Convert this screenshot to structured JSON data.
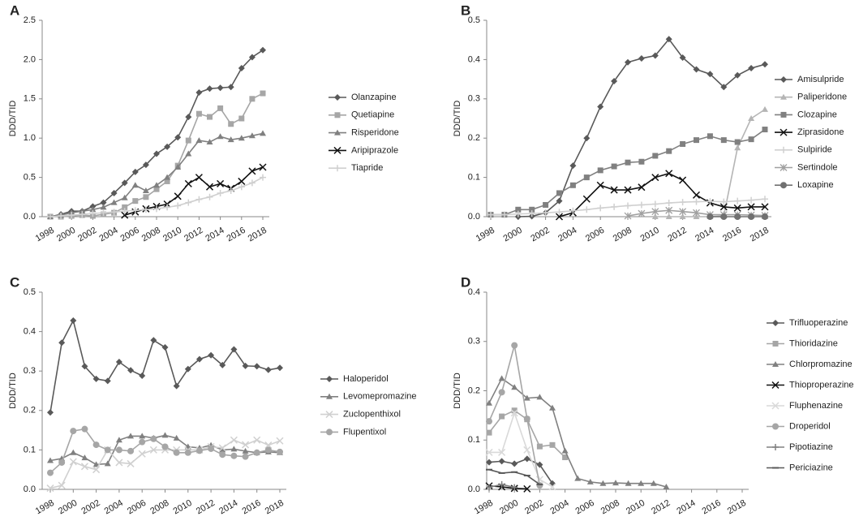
{
  "chart_data": [
    {
      "type": "line",
      "panel": "A",
      "ylabel": "DDD/TID",
      "x": [
        1998,
        1999,
        2000,
        2001,
        2002,
        2003,
        2004,
        2005,
        2006,
        2007,
        2008,
        2009,
        2010,
        2011,
        2012,
        2013,
        2014,
        2015,
        2016,
        2017,
        2018
      ],
      "xlim": [
        1998,
        2018
      ],
      "xticks": [
        1998,
        2000,
        2002,
        2004,
        2006,
        2008,
        2010,
        2012,
        2014,
        2016,
        2018
      ],
      "ylim": [
        0,
        2.5
      ],
      "yticks": [
        {
          "value": 0,
          "label": "0.0"
        },
        {
          "value": 0.5,
          "label": "0.5"
        },
        {
          "value": 1,
          "label": "1.0"
        },
        {
          "value": 1.5,
          "label": "1.5"
        },
        {
          "value": 2,
          "label": "2.0"
        },
        {
          "value": 2.5,
          "label": "2.5"
        }
      ],
      "series": [
        {
          "name": "Olanzapine",
          "color": "#595959",
          "marker": "diamond",
          "values": [
            0,
            0.03,
            0.07,
            0.07,
            0.13,
            0.18,
            0.3,
            0.43,
            0.57,
            0.66,
            0.8,
            0.89,
            1.01,
            1.27,
            1.58,
            1.63,
            1.64,
            1.65,
            1.89,
            2.03,
            2.12
          ]
        },
        {
          "name": "Quetiapine",
          "color": "#a6a6a6",
          "marker": "square",
          "values": [
            0,
            0,
            0.01,
            0.02,
            0.01,
            0.03,
            0.05,
            0.12,
            0.2,
            0.25,
            0.35,
            0.45,
            0.65,
            0.97,
            1.31,
            1.27,
            1.38,
            1.18,
            1.25,
            1.5,
            1.57
          ]
        },
        {
          "name": "Risperidone",
          "color": "#808080",
          "marker": "triangle",
          "values": [
            0,
            0.02,
            0.05,
            0.07,
            0.09,
            0.12,
            0.18,
            0.24,
            0.4,
            0.33,
            0.4,
            0.5,
            0.63,
            0.8,
            0.97,
            0.95,
            1.02,
            0.98,
            1.0,
            1.03,
            1.06
          ]
        },
        {
          "name": "Aripiprazole",
          "color": "#111111",
          "marker": "x",
          "values": [
            null,
            null,
            null,
            null,
            null,
            null,
            null,
            0.02,
            0.06,
            0.1,
            0.13,
            0.16,
            0.26,
            0.42,
            0.5,
            0.38,
            0.42,
            0.36,
            0.45,
            0.58,
            0.63
          ]
        },
        {
          "name": "Tiapride",
          "color": "#d0d0d0",
          "marker": "plus",
          "values": [
            0,
            0.01,
            0.02,
            0.03,
            0.04,
            0.05,
            0.06,
            0.07,
            0.08,
            0.09,
            0.1,
            0.12,
            0.14,
            0.18,
            0.22,
            0.25,
            0.3,
            0.33,
            0.38,
            0.43,
            0.5
          ]
        }
      ]
    },
    {
      "type": "line",
      "panel": "B",
      "ylabel": "DDD/TID",
      "x": [
        1998,
        1999,
        2000,
        2001,
        2002,
        2003,
        2004,
        2005,
        2006,
        2007,
        2008,
        2009,
        2010,
        2011,
        2012,
        2013,
        2014,
        2015,
        2016,
        2017,
        2018
      ],
      "xlim": [
        1998,
        2018
      ],
      "xticks": [
        1998,
        2000,
        2002,
        2004,
        2006,
        2008,
        2010,
        2012,
        2014,
        2016,
        2018
      ],
      "ylim": [
        0,
        0.5
      ],
      "yticks": [
        {
          "value": 0,
          "label": "0.0"
        },
        {
          "value": 0.1,
          "label": "0.1"
        },
        {
          "value": 0.2,
          "label": "0.2"
        },
        {
          "value": 0.3,
          "label": "0.3"
        },
        {
          "value": 0.4,
          "label": "0.4"
        },
        {
          "value": 0.5,
          "label": "0.5"
        }
      ],
      "series": [
        {
          "name": "Amisulpride",
          "color": "#595959",
          "marker": "diamond",
          "values": [
            null,
            null,
            0,
            0.001,
            0.01,
            0.04,
            0.13,
            0.2,
            0.28,
            0.345,
            0.393,
            0.403,
            0.41,
            0.452,
            0.405,
            0.375,
            0.363,
            0.33,
            0.36,
            0.378,
            0.388
          ]
        },
        {
          "name": "Paliperidone",
          "color": "#b5b5b5",
          "marker": "triangle",
          "values": [
            null,
            null,
            null,
            null,
            null,
            null,
            null,
            null,
            null,
            null,
            null,
            null,
            0,
            0,
            0,
            0,
            0,
            0.002,
            0.175,
            0.25,
            0.273
          ]
        },
        {
          "name": "Clozapine",
          "color": "#808080",
          "marker": "square",
          "values": [
            0.005,
            0.005,
            0.018,
            0.018,
            0.03,
            0.06,
            0.08,
            0.1,
            0.118,
            0.128,
            0.138,
            0.14,
            0.155,
            0.167,
            0.185,
            0.195,
            0.205,
            0.195,
            0.19,
            0.197,
            0.222
          ]
        },
        {
          "name": "Ziprasidone",
          "color": "#111111",
          "marker": "x",
          "values": [
            null,
            null,
            null,
            null,
            null,
            0,
            0.01,
            0.045,
            0.08,
            0.068,
            0.068,
            0.075,
            0.1,
            0.11,
            0.093,
            0.055,
            0.035,
            0.025,
            0.022,
            0.025,
            0.025
          ]
        },
        {
          "name": "Sulpiride",
          "color": "#d0d0d0",
          "marker": "plus",
          "values": [
            0.005,
            0.005,
            0.007,
            0.008,
            0.01,
            0.012,
            0.015,
            0.018,
            0.022,
            0.025,
            0.028,
            0.03,
            0.032,
            0.035,
            0.037,
            0.038,
            0.039,
            0.038,
            0.04,
            0.042,
            0.045
          ]
        },
        {
          "name": "Sertindole",
          "color": "#a0a0a0",
          "marker": "star",
          "values": [
            null,
            null,
            null,
            null,
            null,
            null,
            null,
            null,
            null,
            null,
            0.002,
            0.008,
            0.013,
            0.016,
            0.013,
            0.01,
            0.005,
            0.005,
            0.005,
            0.004,
            0.003
          ]
        },
        {
          "name": "Loxapine",
          "color": "#707070",
          "marker": "circle",
          "values": [
            null,
            null,
            null,
            null,
            null,
            null,
            null,
            null,
            null,
            null,
            null,
            null,
            null,
            null,
            null,
            null,
            0,
            0,
            0,
            0,
            0
          ]
        }
      ]
    },
    {
      "type": "line",
      "panel": "C",
      "ylabel": "DDD/TID",
      "x": [
        1998,
        1999,
        2000,
        2001,
        2002,
        2003,
        2004,
        2005,
        2006,
        2007,
        2008,
        2009,
        2010,
        2011,
        2012,
        2013,
        2014,
        2015,
        2016,
        2017,
        2018
      ],
      "xlim": [
        1998,
        2018
      ],
      "xticks": [
        1998,
        2000,
        2002,
        2004,
        2006,
        2008,
        2010,
        2012,
        2014,
        2016,
        2018
      ],
      "ylim": [
        0,
        0.5
      ],
      "yticks": [
        {
          "value": 0,
          "label": "0.0"
        },
        {
          "value": 0.1,
          "label": "0.1"
        },
        {
          "value": 0.2,
          "label": "0.2"
        },
        {
          "value": 0.3,
          "label": "0.3"
        },
        {
          "value": 0.4,
          "label": "0.4"
        },
        {
          "value": 0.5,
          "label": "0.5"
        }
      ],
      "series": [
        {
          "name": "Haloperidol",
          "color": "#595959",
          "marker": "diamond",
          "values": [
            0.195,
            0.372,
            0.428,
            0.312,
            0.28,
            0.275,
            0.323,
            0.302,
            0.288,
            0.378,
            0.36,
            0.262,
            0.305,
            0.33,
            0.34,
            0.315,
            0.355,
            0.313,
            0.312,
            0.303,
            0.308
          ]
        },
        {
          "name": "Levomepromazine",
          "color": "#808080",
          "marker": "triangle",
          "values": [
            0.073,
            0.078,
            0.093,
            0.08,
            0.063,
            0.065,
            0.125,
            0.135,
            0.135,
            0.13,
            0.137,
            0.13,
            0.108,
            0.105,
            0.112,
            0.1,
            0.102,
            0.097,
            0.093,
            0.095,
            0.093
          ]
        },
        {
          "name": "Zuclopenthixol",
          "color": "#d0d0d0",
          "marker": "x",
          "values": [
            0.003,
            0.01,
            0.07,
            0.058,
            0.05,
            0.1,
            0.068,
            0.065,
            0.09,
            0.1,
            0.1,
            0.1,
            0.1,
            0.1,
            0.108,
            0.105,
            0.125,
            0.113,
            0.125,
            0.112,
            0.123
          ]
        },
        {
          "name": "Flupentixol",
          "color": "#a6a6a6",
          "marker": "circle",
          "values": [
            0.042,
            0.068,
            0.148,
            0.153,
            0.113,
            0.1,
            0.1,
            0.097,
            0.12,
            0.128,
            0.108,
            0.093,
            0.093,
            0.098,
            0.103,
            0.088,
            0.085,
            0.083,
            0.093,
            0.1,
            0.095
          ]
        }
      ]
    },
    {
      "type": "line",
      "panel": "D",
      "ylabel": "DDD/TID",
      "x": [
        1998,
        1999,
        2000,
        2001,
        2002,
        2003,
        2004,
        2005,
        2006,
        2007,
        2008,
        2009,
        2010,
        2011,
        2012,
        2013,
        2014,
        2015,
        2016,
        2017,
        2018
      ],
      "xlim": [
        1998,
        2018
      ],
      "xticks": [
        1998,
        2000,
        2002,
        2004,
        2006,
        2008,
        2010,
        2012,
        2014,
        2016,
        2018
      ],
      "ylim": [
        0,
        0.4
      ],
      "yticks": [
        {
          "value": 0,
          "label": "0.0"
        },
        {
          "value": 0.1,
          "label": "0.1"
        },
        {
          "value": 0.2,
          "label": "0.2"
        },
        {
          "value": 0.3,
          "label": "0.3"
        },
        {
          "value": 0.4,
          "label": "0.4"
        }
      ],
      "series": [
        {
          "name": "Trifluoperazine",
          "color": "#595959",
          "marker": "diamond",
          "values": [
            0.055,
            0.057,
            0.052,
            0.062,
            0.05,
            0.012,
            null,
            null,
            null,
            null,
            null,
            null,
            null,
            null,
            null,
            null,
            null,
            null,
            null,
            null,
            null
          ]
        },
        {
          "name": "Thioridazine",
          "color": "#a6a6a6",
          "marker": "square",
          "values": [
            0.115,
            0.148,
            0.16,
            0.142,
            0.087,
            0.09,
            0.065,
            null,
            null,
            null,
            null,
            null,
            null,
            null,
            null,
            null,
            null,
            null,
            null,
            null,
            null
          ]
        },
        {
          "name": "Chlorpromazine",
          "color": "#808080",
          "marker": "triangle",
          "values": [
            0.175,
            0.225,
            0.207,
            0.185,
            0.187,
            0.165,
            0.078,
            0.022,
            0.015,
            0.012,
            0.013,
            0.012,
            0.012,
            0.012,
            0.005,
            null,
            null,
            null,
            null,
            null,
            null
          ]
        },
        {
          "name": "Thioproperazine",
          "color": "#111111",
          "marker": "x",
          "values": [
            0.007,
            0.005,
            0.002,
            0.001,
            null,
            null,
            null,
            null,
            null,
            null,
            null,
            null,
            null,
            null,
            null,
            null,
            null,
            null,
            null,
            null,
            null
          ]
        },
        {
          "name": "Fluphenazine",
          "color": "#d9d9d9",
          "marker": "x",
          "values": [
            0.075,
            0.075,
            0.155,
            0.08,
            0.02,
            0.005,
            null,
            null,
            null,
            null,
            null,
            null,
            null,
            null,
            null,
            null,
            null,
            null,
            null,
            null,
            null
          ]
        },
        {
          "name": "Droperidol",
          "color": "#a6a6a6",
          "marker": "circle",
          "values": [
            0.138,
            0.197,
            0.292,
            0.143,
            0.008,
            null,
            null,
            null,
            null,
            null,
            null,
            null,
            null,
            null,
            null,
            null,
            null,
            null,
            null,
            null,
            null
          ]
        },
        {
          "name": "Pipotiazine",
          "color": "#808080",
          "marker": "plus",
          "values": [
            0.004,
            0.01,
            0.004,
            null,
            null,
            null,
            null,
            null,
            null,
            null,
            null,
            null,
            null,
            null,
            null,
            null,
            null,
            null,
            null,
            null,
            null
          ]
        },
        {
          "name": "Periciazine",
          "color": "#595959",
          "marker": "dash",
          "values": [
            0.04,
            0.033,
            0.035,
            0.028,
            0.01,
            null,
            null,
            null,
            null,
            null,
            null,
            null,
            null,
            null,
            null,
            null,
            null,
            null,
            null,
            null,
            null
          ]
        }
      ]
    }
  ]
}
